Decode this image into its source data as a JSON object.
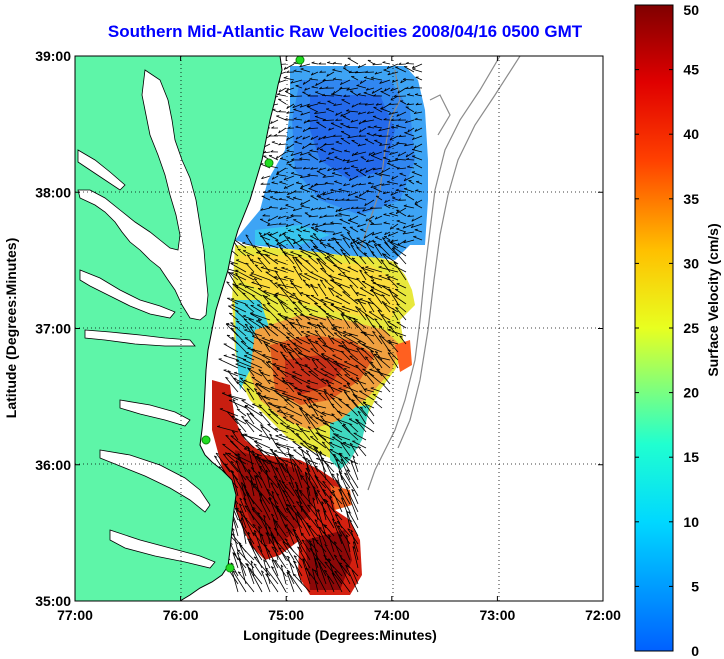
{
  "title": "Southern Mid-Atlantic Raw Velocities 2008/04/16 0500 GMT",
  "x_axis": {
    "label": "Longitude (Degrees:Minutes)",
    "ticks": [
      "77:00",
      "76:00",
      "75:00",
      "74:00",
      "73:00",
      "72:00"
    ],
    "range": [
      -77,
      -72
    ]
  },
  "y_axis": {
    "label": "Latitude (Degrees:Minutes)",
    "ticks": [
      "35:00",
      "36:00",
      "37:00",
      "38:00",
      "39:00"
    ],
    "range": [
      35,
      39
    ]
  },
  "colorbar": {
    "label": "Surface Velocity (cm/s)",
    "ticks": [
      "0",
      "5",
      "10",
      "15",
      "20",
      "25",
      "30",
      "35",
      "40",
      "45",
      "50"
    ],
    "range": [
      0,
      50
    ],
    "colors": [
      "#0000ff",
      "#00ffff",
      "#ffff00",
      "#ff0000",
      "#800000"
    ]
  },
  "colors": {
    "land": "#5ef5a8",
    "coast": "#000000",
    "bathymetry": "#8c8c8c",
    "station": "#22dd22",
    "grid": "#000000",
    "vectors": "#000000"
  },
  "map_features": {
    "grid_lines": "dotted",
    "stations": [
      "station-1",
      "station-2",
      "station-3",
      "station-4"
    ],
    "velocity_regions": [
      {
        "name": "north-region",
        "speed_cm_s": 8
      },
      {
        "name": "middle-region",
        "speed_cm_s": 28
      },
      {
        "name": "southern-jet",
        "speed_cm_s": 45
      }
    ]
  }
}
